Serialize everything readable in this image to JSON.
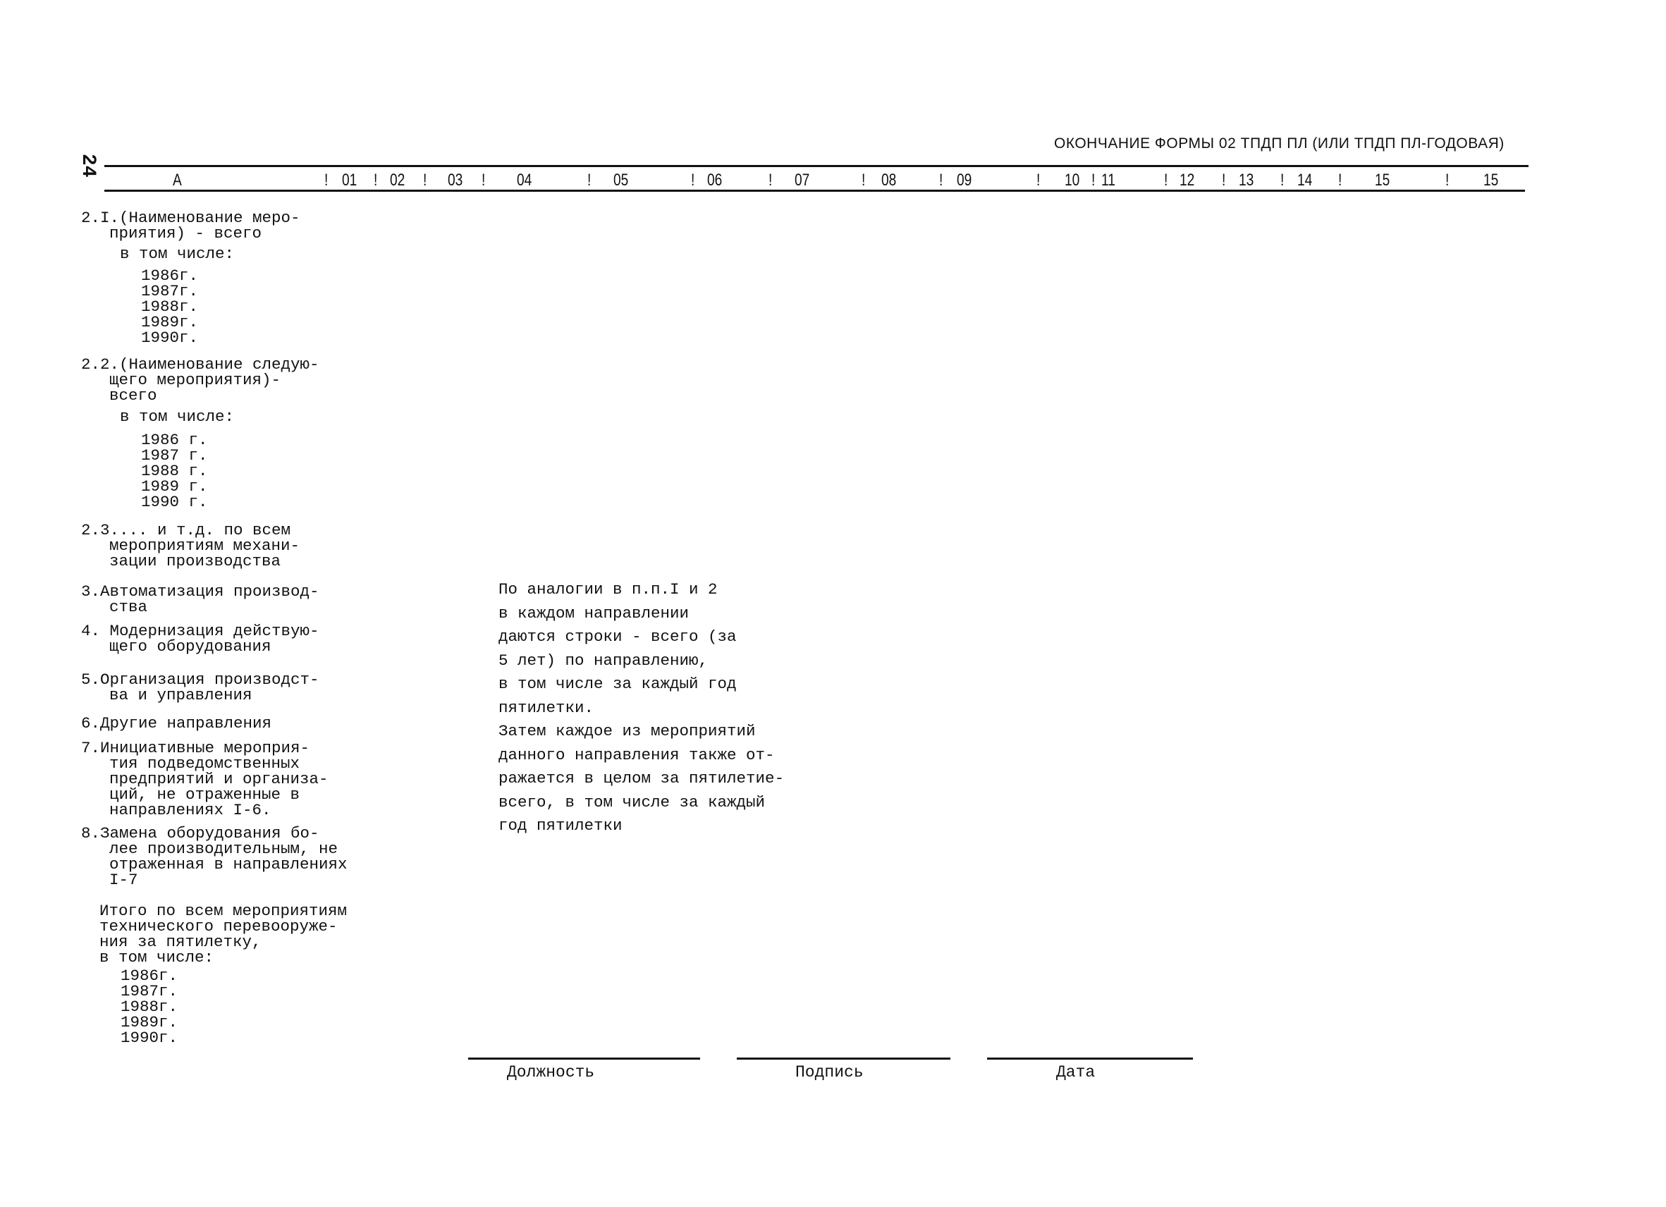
{
  "page_number": "24",
  "form_title": "ОКОНЧАНИЕ ФОРМЫ 02 ТПДП ПЛ (ИЛИ ТПДП ПЛ-ГОДОВАЯ)",
  "columns": [
    "А",
    "01",
    "02",
    "03",
    "04",
    "05",
    "06",
    "07",
    "08",
    "09",
    "10",
    "11",
    "12",
    "13",
    "14",
    "15",
    "15"
  ],
  "rows": [
    {
      "lines": [
        "2.I.(Наименование меро-",
        "приятия) - всего"
      ]
    },
    {
      "lines": [
        "в том числе:"
      ]
    },
    {
      "lines": [
        "1986г.",
        "1987г.",
        "1988г.",
        "1989г.",
        "1990г."
      ]
    },
    {
      "lines": [
        "2.2.(Наименование следую-",
        "щего мероприятия)-",
        "всего"
      ]
    },
    {
      "lines": [
        "в том числе:"
      ]
    },
    {
      "lines": [
        "1986 г.",
        "1987 г.",
        "1988 г.",
        "1989 г.",
        "1990 г."
      ]
    },
    {
      "lines": [
        "2.3.... и т.д. по всем",
        "мероприятиям механи-",
        "зации производства"
      ]
    },
    {
      "lines": [
        "3.Автоматизация производ-",
        "ства"
      ]
    },
    {
      "lines": [
        "4. Модернизация действую-",
        "щего оборудования"
      ]
    },
    {
      "lines": [
        "5.Организация производст-",
        "ва и управления"
      ]
    },
    {
      "lines": [
        "6.Другие направления"
      ]
    },
    {
      "lines": [
        "7.Инициативные мероприя-",
        "тия подведомственных",
        "предприятий и организа-",
        "ций, не отраженные в",
        "направлениях I-6."
      ]
    },
    {
      "lines": [
        "8.Замена оборудования бо-",
        "лее производительным, не",
        "отраженная в направлениях",
        "I-7"
      ]
    },
    {
      "lines": [
        "Итого по всем мероприятиям",
        "технического перевооруже-",
        "ния за пятилетку,",
        "в том числе:"
      ]
    },
    {
      "lines": [
        "1986г.",
        "1987г.",
        "1988г.",
        "1989г.",
        "1990г."
      ]
    }
  ],
  "note_lines": [
    "По аналогии в п.п.I и 2",
    "в каждом направлении",
    "даются строки - всего (за",
    "5 лет) по направлению,",
    "в том числе за каждый год",
    "пятилетки.",
    "Затем каждое из мероприятий",
    "данного направления также от-",
    "ражается в целом за пятилетие-",
    "всего, в том числе за каждый",
    "год пятилетки"
  ],
  "signature": {
    "position": "Должность",
    "signature": "Подпись",
    "date": "Дата"
  }
}
